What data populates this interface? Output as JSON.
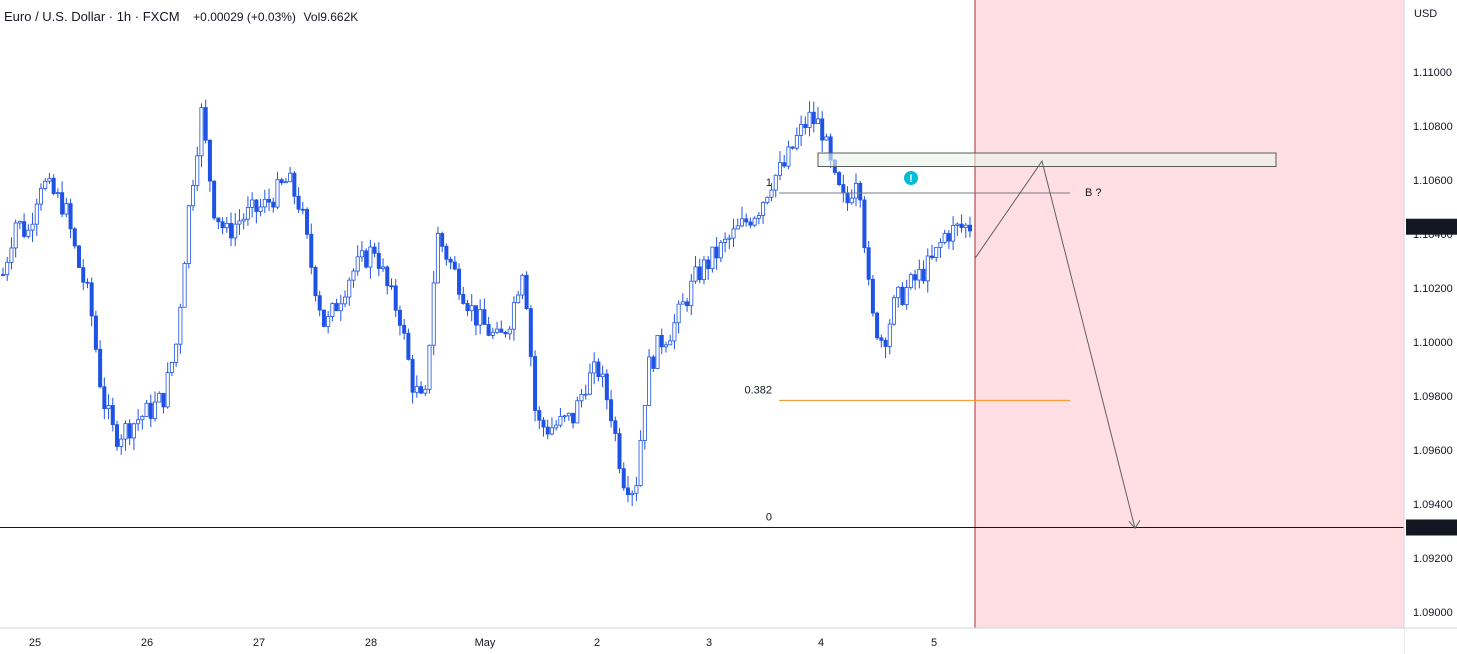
{
  "header": {
    "symbol": "Euro / U.S. Dollar · 1h · FXCM",
    "change": "+0.00029 (+0.03%)",
    "volume": "Vol9.662K"
  },
  "price_axis": {
    "currency": "USD",
    "ticks": [
      "1.11000",
      "1.10800",
      "1.10600",
      "1.10400",
      "1.10200",
      "1.10000",
      "1.09800",
      "1.09600",
      "1.09400",
      "1.09200",
      "1.09000"
    ],
    "last_price_label": "1.10427",
    "target_price_label": "1.09313"
  },
  "colors": {
    "up": "#2962ff",
    "down": "#2962ff",
    "candle_fill_up": "#ffffff",
    "candle_fill_down": "#1e53e5",
    "forecast_zone": "#ffdfe3",
    "fib_382": "#f7931a",
    "zone_fill": "#e9f5e9"
  },
  "chart_data": {
    "type": "candlestick",
    "title": "Euro / U.S. Dollar · 1h · FXCM",
    "x_ticks": [
      "25",
      "26",
      "27",
      "28",
      "May",
      "2",
      "3",
      "4",
      "5"
    ],
    "y_ticks": [
      1.11,
      1.108,
      1.106,
      1.104,
      1.102,
      1.1,
      1.098,
      1.096,
      1.094,
      1.092,
      1.09
    ],
    "ylim": [
      1.0893,
      1.1141
    ],
    "price_path": [
      1.1025,
      1.1045,
      1.104,
      1.106,
      1.1055,
      1.105,
      1.103,
      1.1015,
      1.098,
      1.0965,
      1.0968,
      1.0972,
      1.0975,
      1.098,
      1.1,
      1.105,
      1.1085,
      1.105,
      1.104,
      1.1045,
      1.1048,
      1.105,
      1.1055,
      1.106,
      1.105,
      1.1025,
      1.1005,
      1.1015,
      1.1025,
      1.103,
      1.1035,
      1.102,
      1.101,
      1.0985,
      1.0975,
      1.104,
      1.103,
      1.102,
      1.101,
      1.1005,
      1.1,
      1.101,
      1.103,
      1.097,
      1.0968,
      1.097,
      1.0972,
      1.0985,
      1.099,
      1.0975,
      1.095,
      1.0945,
      1.099,
      1.1,
      1.1005,
      1.1015,
      1.1025,
      1.103,
      1.1035,
      1.104,
      1.1045,
      1.105,
      1.106,
      1.1065,
      1.1075,
      1.1083,
      1.108,
      1.106,
      1.105,
      1.1065,
      1.101,
      1.1,
      1.1015,
      1.102,
      1.1025,
      1.103,
      1.104,
      1.1042,
      1.1043
    ],
    "fib_levels": [
      {
        "label": "1",
        "price": 1.10552
      },
      {
        "label": "0.382",
        "price": 1.09784
      },
      {
        "label": "0",
        "price": 1.09313
      }
    ],
    "supply_zone": [
      1.1065,
      1.107
    ],
    "annotation": "B ?",
    "projection_path_prices": [
      1.1031,
      1.1067,
      1.0931
    ],
    "forecast_shaded": true,
    "horizontal_line": 1.09313
  }
}
